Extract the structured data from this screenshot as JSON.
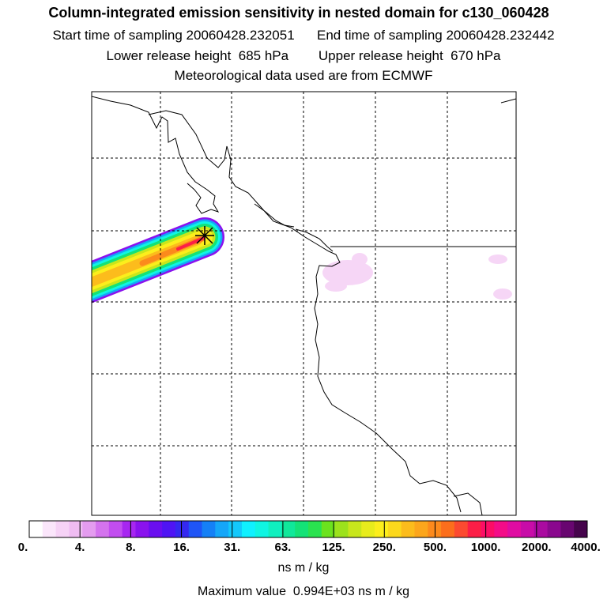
{
  "header": {
    "title": "Column-integrated emission sensitivity in nested domain for c130_060428",
    "start_label": "Start time of sampling 20060428.232051",
    "end_label": "End time of sampling 20060428.232442",
    "lower_label": "Lower release height  685 hPa",
    "upper_label": "Upper release height  670 hPa",
    "met_label": "Meteorological data used are from ECMWF"
  },
  "colorbar": {
    "tick_labels": [
      "0.",
      "4.",
      "8.",
      "16.",
      "31.",
      "63.",
      "125.",
      "250.",
      "500.",
      "1000.",
      "2000.",
      "4000."
    ],
    "colors": [
      "#ffffff",
      "#fbe6fb",
      "#f6d2f6",
      "#efbcf2",
      "#e49cef",
      "#d473ee",
      "#c24df0",
      "#a726f1",
      "#8a12ee",
      "#6a0ef0",
      "#4f14f4",
      "#3528f0",
      "#1f55f6",
      "#1580f6",
      "#15a6f8",
      "#13c8fb",
      "#0ff0ff",
      "#0ff5e2",
      "#10f0bf",
      "#10e89a",
      "#14e277",
      "#2ae24f",
      "#6be21e",
      "#9ce21c",
      "#c8e61c",
      "#e8ec1c",
      "#fcee1c",
      "#fcd81c",
      "#fcbc1c",
      "#fca61c",
      "#fc8a1c",
      "#fc6e1c",
      "#fc4a30",
      "#fc1e46",
      "#fc0d66",
      "#f40c88",
      "#e00ca2",
      "#c80ca8",
      "#aa0aa0",
      "#8a088e",
      "#680670",
      "#46044c"
    ],
    "units": "ns m / kg",
    "max_value_text": "Maximum value  0.994E+03 ns m / kg"
  },
  "map": {
    "release_marker": "release-point-star-icon"
  }
}
